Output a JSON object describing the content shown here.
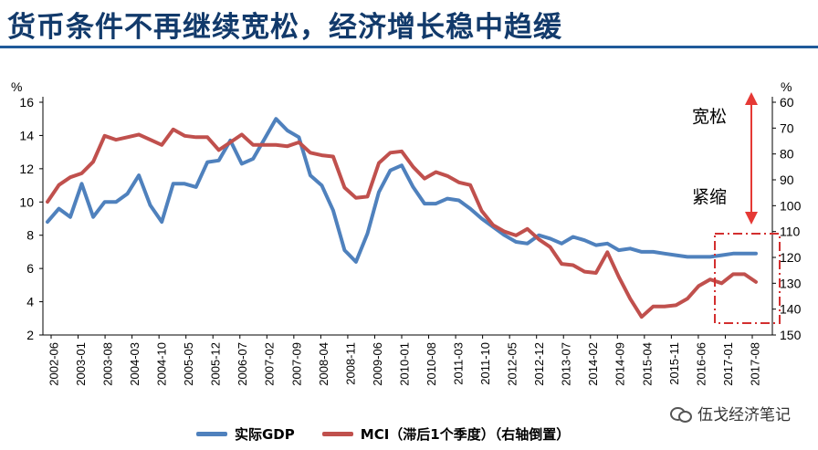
{
  "header": {
    "title": "货币条件不再继续宽松，经济增长稳中趋缓"
  },
  "chart_data": {
    "type": "line",
    "y_left_unit": "%",
    "y_right_unit": "%",
    "y_left_ticks": [
      2,
      4,
      6,
      8,
      10,
      12,
      14,
      16
    ],
    "y_right_ticks": [
      60,
      70,
      80,
      90,
      100,
      110,
      120,
      130,
      140,
      150
    ],
    "y_left_range": [
      2,
      16
    ],
    "y_right_range": [
      60,
      150
    ],
    "y_right_inverted": true,
    "x_labels": [
      "2002-06",
      "2003-01",
      "2003-08",
      "2004-03",
      "2004-10",
      "2005-05",
      "2005-12",
      "2006-07",
      "2007-02",
      "2007-09",
      "2008-04",
      "2008-11",
      "2009-06",
      "2010-01",
      "2010-08",
      "2011-03",
      "2011-10",
      "2012-05",
      "2012-12",
      "2013-07",
      "2014-02",
      "2014-09",
      "2015-04",
      "2015-11",
      "2016-06",
      "2017-01",
      "2017-08"
    ],
    "grid": false,
    "legend_position": "bottom",
    "series": [
      {
        "name": "实际GDP",
        "axis": "left",
        "color": "#4f81bd",
        "values": [
          8.8,
          9.6,
          9.1,
          11.1,
          9.1,
          10.0,
          10.0,
          10.5,
          11.6,
          9.8,
          8.8,
          11.1,
          11.1,
          10.9,
          12.4,
          12.5,
          13.7,
          12.3,
          12.6,
          13.8,
          15.0,
          14.3,
          13.9,
          11.6,
          11.0,
          9.5,
          7.1,
          6.4,
          8.1,
          10.6,
          11.9,
          12.2,
          10.9,
          9.9,
          9.9,
          10.2,
          10.1,
          9.6,
          9.0,
          8.5,
          8.0,
          7.6,
          7.5,
          8.0,
          7.8,
          7.5,
          7.9,
          7.7,
          7.4,
          7.5,
          7.1,
          7.2,
          7.0,
          7.0,
          6.9,
          6.8,
          6.7,
          6.7,
          6.7,
          6.8,
          6.9,
          6.9,
          6.9
        ]
      },
      {
        "name": "MCI（滞后1个季度）（右轴倒置）",
        "axis": "right",
        "color": "#c0504d",
        "values": [
          98.5,
          92,
          89,
          87.5,
          83,
          73,
          74.5,
          73.5,
          72.5,
          74.5,
          76.5,
          70.5,
          73,
          73.5,
          73.5,
          78.5,
          75.5,
          72.5,
          76.5,
          76.5,
          76.5,
          77,
          75.5,
          79.5,
          80.5,
          81,
          93,
          97,
          96.5,
          83.5,
          79.5,
          79,
          85,
          89.5,
          87,
          88.5,
          91,
          92,
          102,
          107.5,
          110,
          111.5,
          109,
          113,
          116,
          122.5,
          123,
          125.5,
          126,
          118,
          127.5,
          136,
          143,
          139,
          139,
          138.5,
          136,
          131,
          128.5,
          130,
          126.5,
          126.5,
          129.5
        ]
      }
    ],
    "annotations": {
      "loose_label": "宽松",
      "tight_label": "紧缩"
    }
  },
  "legend": {
    "gdp_label": "实际GDP",
    "mci_label": "MCI（滞后1个季度）（右轴倒置）"
  },
  "watermark": {
    "text": "伍戈经济笔记"
  }
}
